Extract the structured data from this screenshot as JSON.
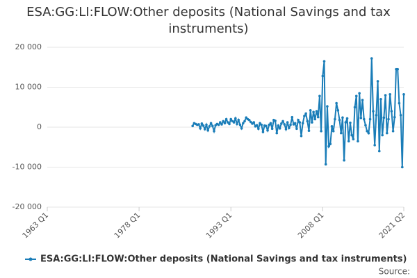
{
  "chart_data": {
    "type": "line",
    "title": "ESA:GG:LI:FLOW:Other deposits (National Savings and tax instruments)",
    "source": "Source:",
    "x": [
      "1986 Q4",
      "1987 Q1",
      "1987 Q2",
      "1987 Q3",
      "1987 Q4",
      "1988 Q1",
      "1988 Q2",
      "1988 Q3",
      "1988 Q4",
      "1989 Q1",
      "1989 Q2",
      "1989 Q3",
      "1989 Q4",
      "1990 Q1",
      "1990 Q2",
      "1990 Q3",
      "1990 Q4",
      "1991 Q1",
      "1991 Q2",
      "1991 Q3",
      "1991 Q4",
      "1992 Q1",
      "1992 Q2",
      "1992 Q3",
      "1992 Q4",
      "1993 Q1",
      "1993 Q2",
      "1993 Q3",
      "1993 Q4",
      "1994 Q1",
      "1994 Q2",
      "1994 Q3",
      "1994 Q4",
      "1995 Q1",
      "1995 Q2",
      "1995 Q3",
      "1995 Q4",
      "1996 Q1",
      "1996 Q2",
      "1996 Q3",
      "1996 Q4",
      "1997 Q1",
      "1997 Q2",
      "1997 Q3",
      "1997 Q4",
      "1998 Q1",
      "1998 Q2",
      "1998 Q3",
      "1998 Q4",
      "1999 Q1",
      "1999 Q2",
      "1999 Q3",
      "1999 Q4",
      "2000 Q1",
      "2000 Q2",
      "2000 Q3",
      "2000 Q4",
      "2001 Q1",
      "2001 Q2",
      "2001 Q3",
      "2001 Q4",
      "2002 Q1",
      "2002 Q2",
      "2002 Q3",
      "2002 Q4",
      "2003 Q1",
      "2003 Q2",
      "2003 Q3",
      "2003 Q4",
      "2004 Q1",
      "2004 Q2",
      "2004 Q3",
      "2004 Q4",
      "2005 Q1",
      "2005 Q2",
      "2005 Q3",
      "2005 Q4",
      "2006 Q1",
      "2006 Q2",
      "2006 Q3",
      "2006 Q4",
      "2007 Q1",
      "2007 Q2",
      "2007 Q3",
      "2007 Q4",
      "2008 Q1",
      "2008 Q2",
      "2008 Q3",
      "2008 Q4",
      "2009 Q1",
      "2009 Q2",
      "2009 Q3",
      "2009 Q4",
      "2010 Q1",
      "2010 Q2",
      "2010 Q3",
      "2010 Q4",
      "2011 Q1",
      "2011 Q2",
      "2011 Q3",
      "2011 Q4",
      "2012 Q1",
      "2012 Q2",
      "2012 Q3",
      "2012 Q4",
      "2013 Q1",
      "2013 Q2",
      "2013 Q3",
      "2013 Q4",
      "2014 Q1",
      "2014 Q2",
      "2014 Q3",
      "2014 Q4",
      "2015 Q1",
      "2015 Q2",
      "2015 Q3",
      "2015 Q4",
      "2016 Q1",
      "2016 Q2",
      "2016 Q3",
      "2016 Q4",
      "2017 Q1",
      "2017 Q2",
      "2017 Q3",
      "2017 Q4",
      "2018 Q1",
      "2018 Q2",
      "2018 Q3",
      "2018 Q4",
      "2019 Q1",
      "2019 Q2",
      "2019 Q3",
      "2019 Q4",
      "2020 Q1",
      "2020 Q2",
      "2020 Q3",
      "2020 Q4",
      "2021 Q1",
      "2021 Q2"
    ],
    "series": [
      {
        "name": "ESA:GG:LI:FLOW:Other deposits (National Savings and tax instruments)",
        "color": "#1a7db8",
        "values": [
          300,
          1000,
          800,
          600,
          700,
          -300,
          900,
          400,
          -500,
          600,
          -800,
          200,
          1000,
          300,
          -1000,
          500,
          800,
          600,
          1200,
          700,
          1500,
          1000,
          2000,
          1200,
          800,
          2000,
          1500,
          1200,
          2200,
          800,
          1800,
          600,
          -300,
          1000,
          1500,
          2400,
          2000,
          1800,
          1300,
          900,
          1200,
          200,
          500,
          -400,
          1000,
          600,
          -1200,
          400,
          300,
          -800,
          600,
          1000,
          -400,
          1800,
          1600,
          -1500,
          400,
          -300,
          900,
          1500,
          700,
          -500,
          1200,
          -200,
          600,
          2500,
          700,
          1000,
          -400,
          1800,
          1200,
          -2200,
          1000,
          2800,
          3400,
          1500,
          -900,
          4200,
          1200,
          3800,
          2000,
          4000,
          2500,
          7800,
          -1000,
          12800,
          16500,
          -9300,
          5200,
          -4800,
          -4200,
          200,
          -1000,
          2000,
          6000,
          4200,
          1800,
          -1500,
          2400,
          -8300,
          1200,
          2200,
          -3500,
          1100,
          -2000,
          -3000,
          5000,
          7800,
          -3500,
          8500,
          2300,
          6800,
          2000,
          500,
          -1000,
          -1500,
          2000,
          17200,
          4000,
          -4500,
          3000,
          11500,
          -6000,
          7000,
          -2000,
          2400,
          8000,
          -1500,
          2000,
          8200,
          4000,
          -1000,
          2500,
          14500,
          14500,
          6000,
          3000,
          -10000,
          8200
        ]
      }
    ],
    "xlim": [
      "1963 Q1",
      "2021 Q2"
    ],
    "xticks": [
      "1963 Q1",
      "1978 Q1",
      "1993 Q1",
      "2008 Q1",
      "2021 Q2"
    ],
    "ylim": [
      -20000,
      20000
    ],
    "yticks": [
      {
        "value": -20000,
        "label": "-20 000"
      },
      {
        "value": -10000,
        "label": "-10 000"
      },
      0,
      {
        "value": 10000,
        "label": "10 000"
      },
      {
        "value": 20000,
        "label": "20 000"
      }
    ],
    "grid": true
  }
}
